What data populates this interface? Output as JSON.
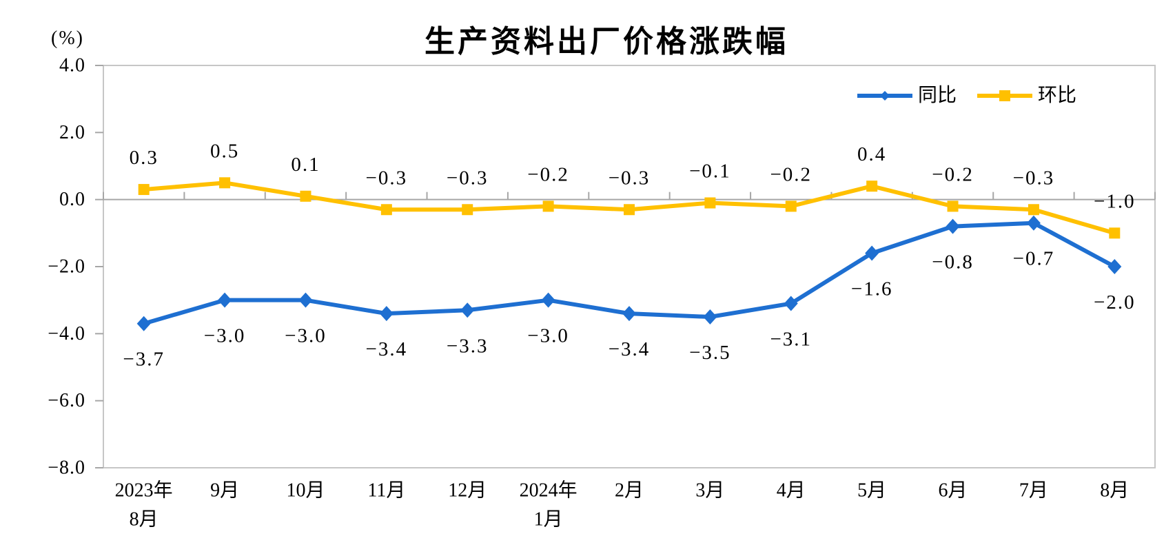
{
  "chart_data": {
    "type": "line",
    "title": "生产资料出厂价格涨跌幅",
    "unit": "(%)",
    "categories": [
      "2023年\n8月",
      "9月",
      "10月",
      "11月",
      "12月",
      "2024年\n1月",
      "2月",
      "3月",
      "4月",
      "5月",
      "6月",
      "7月",
      "8月"
    ],
    "series": [
      {
        "key": "yoy",
        "name": "同比",
        "color": "#1E6FD1",
        "marker": "diamond",
        "label_position": "below",
        "values": [
          -3.7,
          -3.0,
          -3.0,
          -3.4,
          -3.3,
          -3.0,
          -3.4,
          -3.5,
          -3.1,
          -1.6,
          -0.8,
          -0.7,
          -2.0
        ],
        "labels": [
          "-3.7",
          "-3.0",
          "-3.0",
          "-3.4",
          "-3.3",
          "-3.0",
          "-3.4",
          "-3.5",
          "-3.1",
          "-1.6",
          "-0.8",
          "-0.7",
          "-2.0"
        ]
      },
      {
        "key": "mom",
        "name": "环比",
        "color": "#FFC000",
        "marker": "square",
        "label_position": "above",
        "values": [
          0.3,
          0.5,
          0.1,
          -0.3,
          -0.3,
          -0.2,
          -0.3,
          -0.1,
          -0.2,
          0.4,
          -0.2,
          -0.3,
          -1.0
        ],
        "labels": [
          "0.3",
          "0.5",
          "0.1",
          "-0.3",
          "-0.3",
          "-0.2",
          "-0.3",
          "-0.1",
          "-0.2",
          "0.4",
          "-0.2",
          "-0.3",
          "-1.0"
        ]
      }
    ],
    "ylim": [
      -8.0,
      4.0
    ],
    "yticks": [
      4.0,
      2.0,
      0.0,
      -2.0,
      -4.0,
      -6.0,
      -8.0
    ],
    "ytick_labels": [
      "4.0",
      "2.0",
      "0.0",
      "-2.0",
      "-4.0",
      "-6.0",
      "-8.0"
    ],
    "grid": "zero-line-only",
    "legend_position": "top-right",
    "colors": {
      "plot_border": "#C6C6C6",
      "zero_line": "#A6A6A6",
      "tick": "#A6A6A6",
      "text": "#000000"
    }
  }
}
